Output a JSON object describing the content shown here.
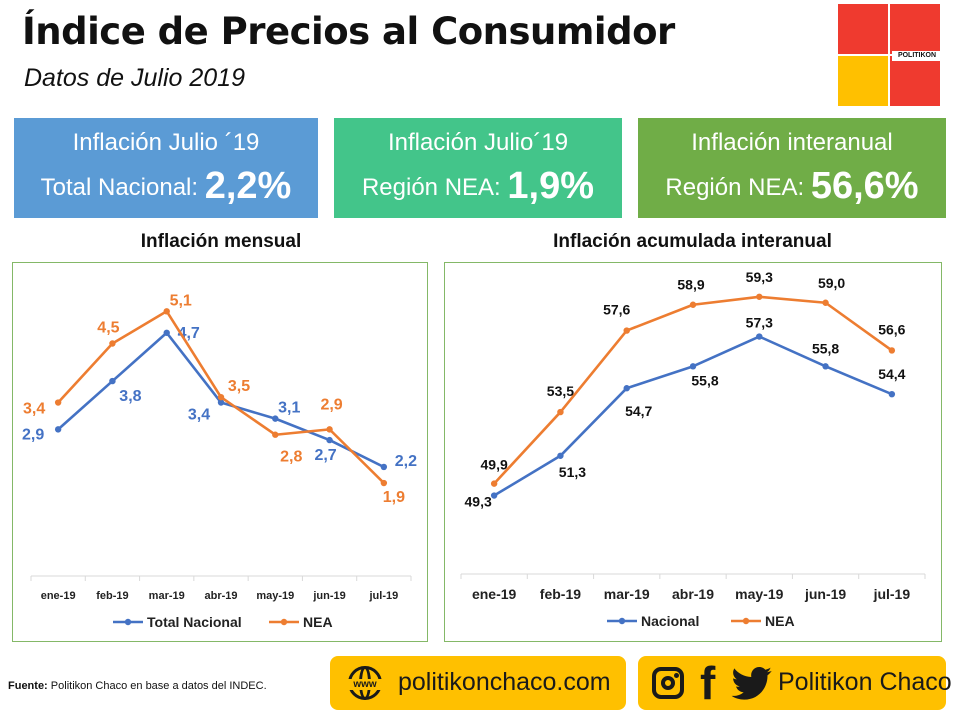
{
  "header": {
    "title": "Índice de Precios al Consumidor",
    "subtitle": "Datos de Julio 2019",
    "logo_text": "POLITIKON"
  },
  "kpis": [
    {
      "line1": "Inflación Julio ´19",
      "prefix": "Total Nacional:",
      "value": "2,2%",
      "color": "#5b9bd5"
    },
    {
      "line1": "Inflación Julio´19",
      "prefix": "Región NEA:",
      "value": "1,9%",
      "color": "#43c58a"
    },
    {
      "line1": "Inflación interanual",
      "prefix": "Región NEA:",
      "value": "56,6%",
      "color": "#70ad47"
    }
  ],
  "chart_data": [
    {
      "type": "line",
      "title": "Inflación mensual",
      "categories": [
        "ene-19",
        "feb-19",
        "mar-19",
        "abr-19",
        "may-19",
        "jun-19",
        "jul-19"
      ],
      "series": [
        {
          "name": "Total Nacional",
          "color": "#4472c4",
          "values": [
            2.9,
            3.8,
            4.7,
            3.4,
            3.1,
            2.7,
            2.2
          ],
          "labels": [
            "2,9",
            "3,8",
            "4,7",
            "3,4",
            "3,1",
            "2,7",
            "2,2"
          ]
        },
        {
          "name": "NEA",
          "color": "#ed7d31",
          "values": [
            3.4,
            4.5,
            5.1,
            3.5,
            2.8,
            2.9,
            1.9
          ],
          "labels": [
            "3,4",
            "4,5",
            "5,1",
            "3,5",
            "2,8",
            "2,9",
            "1,9"
          ]
        }
      ],
      "ylim": [
        0,
        6
      ],
      "grid": false,
      "legend": "bottom"
    },
    {
      "type": "line",
      "title": "Inflación acumulada interanual",
      "categories": [
        "ene-19",
        "feb-19",
        "mar-19",
        "abr-19",
        "may-19",
        "jun-19",
        "jul-19"
      ],
      "series": [
        {
          "name": "Nacional",
          "color": "#4472c4",
          "values": [
            49.3,
            51.3,
            54.7,
            55.8,
            57.3,
            55.8,
            54.4
          ],
          "labels": [
            "49,3",
            "51,3",
            "54,7",
            "55,8",
            "57,3",
            "55,8",
            "54,4"
          ]
        },
        {
          "name": "NEA",
          "color": "#ed7d31",
          "values": [
            49.9,
            53.5,
            57.6,
            58.9,
            59.3,
            59.0,
            56.6
          ],
          "labels": [
            "49,9",
            "53,5",
            "57,6",
            "58,9",
            "59,3",
            "59,0",
            "56,6"
          ]
        }
      ],
      "ylim": [
        45,
        61
      ],
      "grid": false,
      "legend": "bottom"
    }
  ],
  "footer": {
    "source_label": "Fuente:",
    "source_text": " Politikon Chaco en base a datos del INDEC.",
    "www_icon_text": "www",
    "website": "politikonchaco.com",
    "facebook_glyph": "f",
    "social_handle": "Politikon Chaco"
  }
}
